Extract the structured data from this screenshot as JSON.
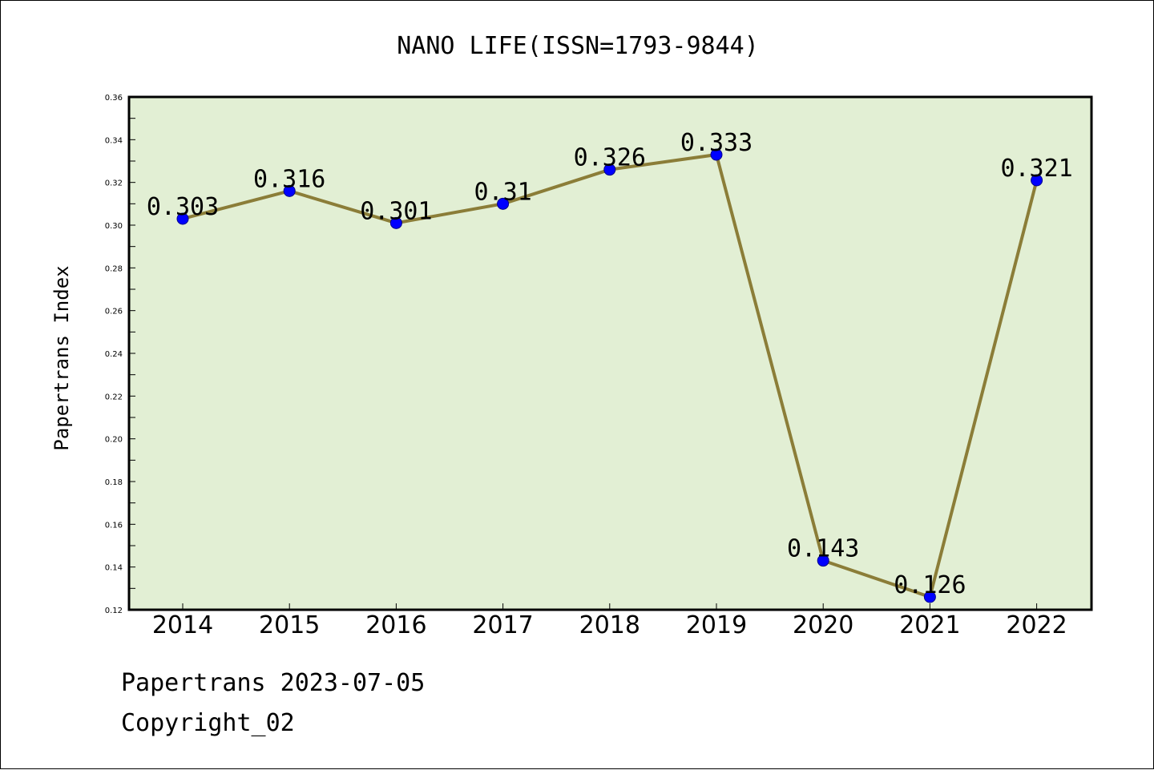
{
  "chart_data": {
    "type": "line",
    "title": "NANO LIFE(ISSN=1793-9844)",
    "xlabel": "",
    "ylabel": "Papertrans Index",
    "categories": [
      "2014",
      "2015",
      "2016",
      "2017",
      "2018",
      "2019",
      "2020",
      "2021",
      "2022"
    ],
    "series": [
      {
        "values": [
          0.303,
          0.316,
          0.301,
          0.31,
          0.326,
          0.333,
          0.143,
          0.126,
          0.321
        ],
        "data_labels": [
          "0.303",
          "0.316",
          "0.301",
          "0.31",
          "0.326",
          "0.333",
          "0.143",
          "0.126",
          "0.321"
        ]
      }
    ],
    "ylim": [
      0.12,
      0.36
    ],
    "yticks": [
      "0.12",
      "0.14",
      "0.16",
      "0.18",
      "0.20",
      "0.22",
      "0.24",
      "0.26",
      "0.28",
      "0.30",
      "0.32",
      "0.34",
      "0.36"
    ],
    "grid": false,
    "legend": "none",
    "colors": {
      "plot_background": "#e2efd4",
      "line": "#8b7d38",
      "marker": "#0000ff",
      "marker_edge": "#00008b"
    }
  },
  "footer": {
    "line1": "Papertrans 2023-07-05",
    "line2": "Copyright_02"
  }
}
